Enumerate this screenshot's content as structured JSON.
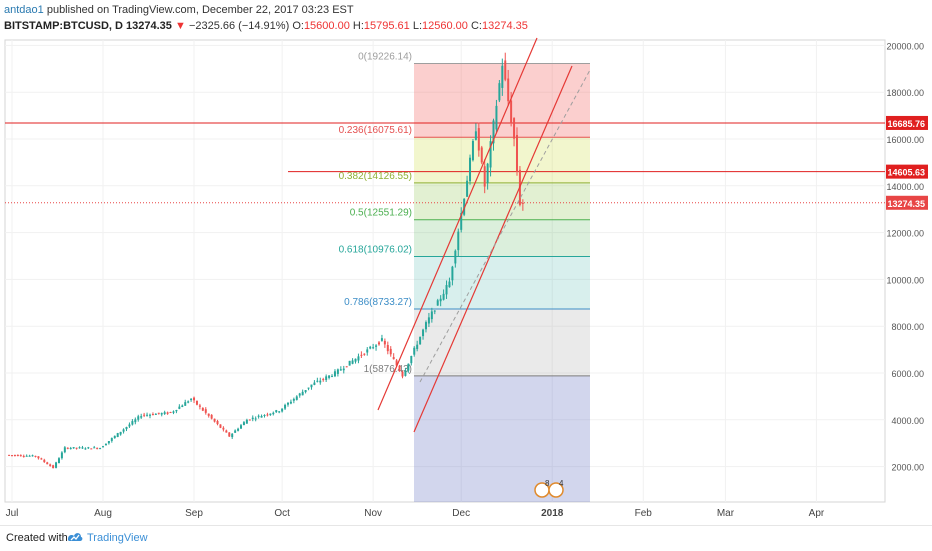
{
  "header": {
    "author": "antdao1",
    "published": "published on TradingView.com, December 22, 2017 03:23 EST",
    "symbol": "BITSTAMP:BTCUSD, D",
    "last": "13274.35",
    "change": "−2325.66 (−14.91%)",
    "o_label": "O:",
    "o_val": "15600.00",
    "h_label": "H:",
    "h_val": "15795.61",
    "l_label": "L:",
    "l_val": "12560.00",
    "c_label": "C:",
    "c_val": "13274.35"
  },
  "footer": {
    "created": "Created with",
    "brand": "TradingView"
  },
  "chart_data": {
    "type": "candlestick",
    "y_ticks": [
      "2000.00",
      "4000.00",
      "6000.00",
      "8000.00",
      "10000.00",
      "12000.00",
      "14000.00",
      "16000.00",
      "18000.00",
      "20000.00"
    ],
    "x_ticks": [
      "Jul",
      "Aug",
      "Sep",
      "Oct",
      "Nov",
      "Dec",
      "2018",
      "Feb",
      "Mar",
      "Apr"
    ],
    "price_labels": [
      {
        "value": 16685.76,
        "text": "16685.76",
        "color": "#e01f1f"
      },
      {
        "value": 14605.63,
        "text": "14605.63",
        "color": "#e01f1f"
      },
      {
        "value": 13274.35,
        "text": "13274.35",
        "color": "#e84545"
      }
    ],
    "fib_levels": [
      {
        "text": "0(19226.14)",
        "value": 19226.14,
        "color": "#9e9e9e"
      },
      {
        "text": "0.236(16075.61)",
        "value": 16075.61,
        "color": "#e55050"
      },
      {
        "text": "0.382(14126.55)",
        "value": 14126.55,
        "color": "#8fb035"
      },
      {
        "text": "0.5(12551.29)",
        "value": 12551.29,
        "color": "#4caf50"
      },
      {
        "text": "0.618(10976.02)",
        "value": 10976.02,
        "color": "#26a69a"
      },
      {
        "text": "0.786(8733.27)",
        "value": 8733.27,
        "color": "#3d8ec7"
      },
      {
        "text": "1(5876.43)",
        "value": 5876.43,
        "color": "#7c7c7c"
      }
    ],
    "event_badges": [
      "8",
      "4"
    ],
    "series_points": [
      [
        "2017-06-30",
        2500
      ],
      [
        "2017-07-10",
        2450
      ],
      [
        "2017-07-16",
        1950
      ],
      [
        "2017-07-20",
        2800
      ],
      [
        "2017-08-01",
        2800
      ],
      [
        "2017-08-15",
        4200
      ],
      [
        "2017-08-25",
        4300
      ],
      [
        "2017-09-01",
        4900
      ],
      [
        "2017-09-14",
        3300
      ],
      [
        "2017-09-20",
        4000
      ],
      [
        "2017-10-01",
        4400
      ],
      [
        "2017-10-12",
        5500
      ],
      [
        "2017-10-20",
        6000
      ],
      [
        "2017-11-05",
        7400
      ],
      [
        "2017-11-12",
        5900
      ],
      [
        "2017-11-20",
        8100
      ],
      [
        "2017-11-28",
        9900
      ],
      [
        "2017-12-07",
        16500
      ],
      [
        "2017-12-10",
        14000
      ],
      [
        "2017-12-16",
        19226
      ],
      [
        "2017-12-20",
        16000
      ],
      [
        "2017-12-22",
        13274
      ]
    ]
  }
}
